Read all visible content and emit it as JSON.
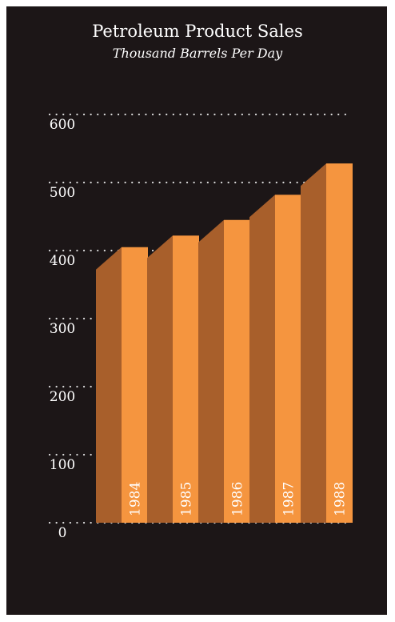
{
  "chart_data": {
    "type": "bar",
    "title": "Petroleum Product Sales",
    "subtitle": "Thousand Barrels Per Day",
    "categories": [
      "1984",
      "1985",
      "1986",
      "1987",
      "1988"
    ],
    "values": [
      405,
      422,
      445,
      482,
      528
    ],
    "ylim": [
      0,
      600
    ],
    "yticks": [
      0,
      100,
      200,
      300,
      400,
      500,
      600
    ],
    "grid": true,
    "colors": {
      "background": "#1c1617",
      "bar_front": "#f5953f",
      "bar_side": "#a85f2b",
      "text": "#ffffff",
      "grid": "#d9d9d9"
    }
  }
}
